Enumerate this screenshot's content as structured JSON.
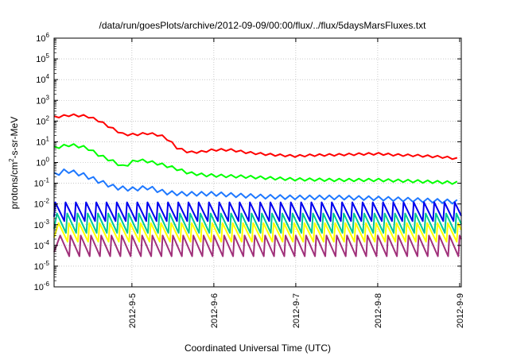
{
  "chart_data": {
    "type": "line",
    "title": "/data/run/goesPlots/archive/2012-09-09/00:00/flux/../flux/5daysMarsFluxes.txt",
    "xlabel": "Coordinated Universal Time (UTC)",
    "ylabel": "protons/cm2-s-sr-MeV",
    "ylabel_parts": {
      "base": "protons/cm",
      "sup": "2",
      "rest": "-s-sr-MeV"
    },
    "yscale": "log",
    "ylim_exponents": [
      -6,
      6
    ],
    "y_tick_labels": [
      {
        "exp": -6,
        "base": "10",
        "sup": "-6"
      },
      {
        "exp": -5,
        "base": "10",
        "sup": "-5"
      },
      {
        "exp": -4,
        "base": "10",
        "sup": "-4"
      },
      {
        "exp": -3,
        "base": "10",
        "sup": "-3"
      },
      {
        "exp": -2,
        "base": "10",
        "sup": "-2"
      },
      {
        "exp": -1,
        "base": "10",
        "sup": "-1"
      },
      {
        "exp": 0,
        "base": "10",
        "sup": "0"
      },
      {
        "exp": 1,
        "base": "10",
        "sup": "1"
      },
      {
        "exp": 2,
        "base": "10",
        "sup": "2"
      },
      {
        "exp": 3,
        "base": "10",
        "sup": "3"
      },
      {
        "exp": 4,
        "base": "10",
        "sup": "4"
      },
      {
        "exp": 5,
        "base": "10",
        "sup": "5"
      },
      {
        "exp": 6,
        "base": "10",
        "sup": "6"
      }
    ],
    "x_range_days": [
      -0.95,
      4.02
    ],
    "x_ticks": [
      {
        "day": 0,
        "label": "2012-9-5"
      },
      {
        "day": 1,
        "label": "2012-9-6"
      },
      {
        "day": 2,
        "label": "2012-9-7"
      },
      {
        "day": 3,
        "label": "2012-9-8"
      },
      {
        "day": 4,
        "label": "2012-9-9"
      }
    ],
    "grid": true,
    "series": [
      {
        "color": "#ff0000",
        "kind": "smooth",
        "points": [
          [
            -0.95,
            150
          ],
          [
            -0.75,
            190
          ],
          [
            -0.55,
            170
          ],
          [
            -0.4,
            100
          ],
          [
            -0.25,
            45
          ],
          [
            -0.1,
            22
          ],
          [
            0.05,
            22
          ],
          [
            0.2,
            25
          ],
          [
            0.35,
            20
          ],
          [
            0.45,
            12
          ],
          [
            0.55,
            5
          ],
          [
            0.7,
            3
          ],
          [
            0.85,
            3.2
          ],
          [
            1.0,
            4
          ],
          [
            1.2,
            4
          ],
          [
            1.4,
            3
          ],
          [
            1.6,
            2.5
          ],
          [
            1.8,
            2.2
          ],
          [
            2.0,
            2.0
          ],
          [
            2.2,
            2.2
          ],
          [
            2.5,
            2.3
          ],
          [
            2.8,
            2.5
          ],
          [
            3.0,
            2.6
          ],
          [
            3.2,
            2.3
          ],
          [
            3.5,
            2.1
          ],
          [
            3.8,
            1.8
          ],
          [
            4.02,
            1.4
          ]
        ],
        "ripple": 0.15,
        "period": 0.12
      },
      {
        "color": "#00ff00",
        "kind": "smooth",
        "points": [
          [
            -0.95,
            5
          ],
          [
            -0.75,
            7
          ],
          [
            -0.55,
            5
          ],
          [
            -0.4,
            2.2
          ],
          [
            -0.25,
            1.2
          ],
          [
            -0.1,
            0.6
          ],
          [
            0.05,
            1.3
          ],
          [
            0.2,
            1.1
          ],
          [
            0.35,
            0.8
          ],
          [
            0.5,
            0.55
          ],
          [
            0.7,
            0.3
          ],
          [
            0.9,
            0.24
          ],
          [
            1.1,
            0.22
          ],
          [
            1.4,
            0.2
          ],
          [
            1.7,
            0.17
          ],
          [
            2.0,
            0.15
          ],
          [
            2.5,
            0.14
          ],
          [
            3.0,
            0.14
          ],
          [
            3.5,
            0.12
          ],
          [
            4.02,
            0.1
          ]
        ],
        "ripple": 0.2,
        "period": 0.12
      },
      {
        "color": "#1e78ff",
        "kind": "smooth",
        "points": [
          [
            -0.95,
            0.25
          ],
          [
            -0.8,
            0.4
          ],
          [
            -0.6,
            0.25
          ],
          [
            -0.4,
            0.12
          ],
          [
            -0.2,
            0.06
          ],
          [
            0.0,
            0.05
          ],
          [
            0.2,
            0.06
          ],
          [
            0.4,
            0.035
          ],
          [
            0.6,
            0.03
          ],
          [
            0.8,
            0.03
          ],
          [
            1.0,
            0.03
          ],
          [
            1.3,
            0.025
          ],
          [
            1.6,
            0.022
          ],
          [
            2.0,
            0.02
          ],
          [
            2.5,
            0.02
          ],
          [
            3.0,
            0.018
          ],
          [
            3.5,
            0.015
          ],
          [
            4.02,
            0.012
          ]
        ],
        "ripple": 0.3,
        "period": 0.12
      },
      {
        "color": "#0000ee",
        "kind": "sawtooth",
        "low": 0.0015,
        "high": 0.012,
        "period": 0.125,
        "phase": 0.0
      },
      {
        "color": "#00c896",
        "kind": "sawtooth",
        "low": 0.0004,
        "high": 0.0035,
        "period": 0.125,
        "phase": 0.02
      },
      {
        "color": "#ffff00",
        "kind": "sawtooth",
        "low": 0.00015,
        "high": 0.0012,
        "period": 0.125,
        "phase": 0.04
      },
      {
        "color": "#a0307a",
        "kind": "sawtooth",
        "low": 3e-05,
        "high": 0.0003,
        "period": 0.125,
        "phase": 0.06
      }
    ]
  }
}
